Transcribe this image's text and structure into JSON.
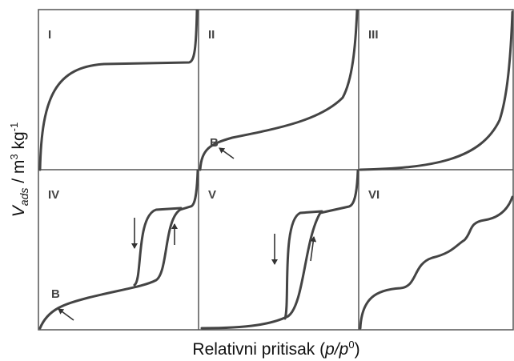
{
  "panels": [
    {
      "label": "I"
    },
    {
      "label": "II",
      "point": "B"
    },
    {
      "label": "III"
    },
    {
      "label": "IV",
      "point": "B"
    },
    {
      "label": "V"
    },
    {
      "label": "VI"
    }
  ],
  "y_axis": {
    "symbol": "V",
    "subscript": "ads",
    "unit_a": " / m",
    "sup_a": "3",
    "unit_b": " kg",
    "sup_b": "-1"
  },
  "x_axis": {
    "text": "Relativni pritisak (",
    "symbol": "p/p",
    "sup": "0",
    "close": ")"
  }
}
